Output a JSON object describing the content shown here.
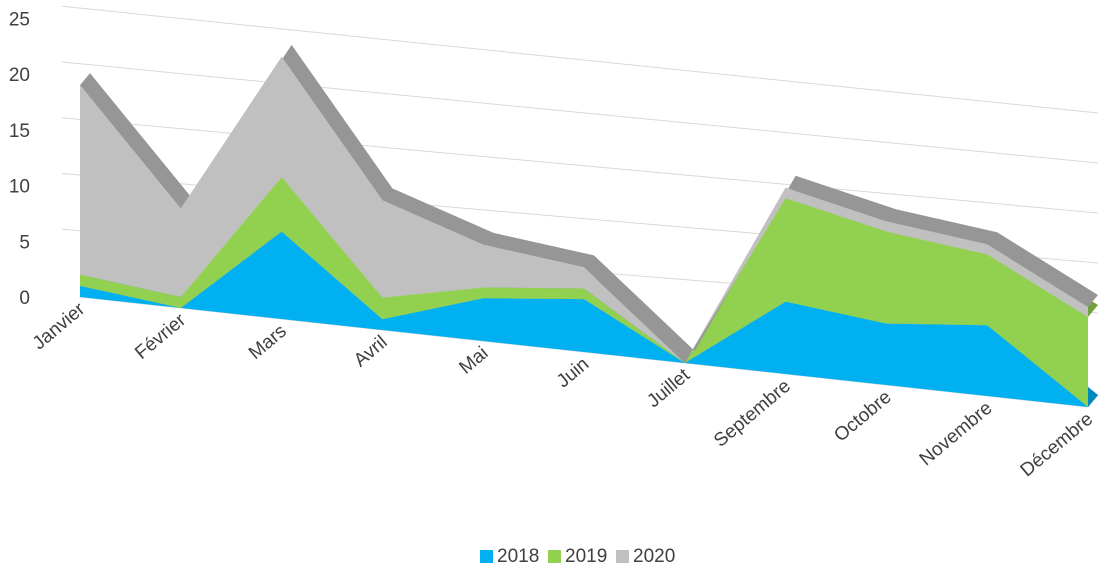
{
  "chart_data": {
    "type": "area",
    "subtype": "3d-stacked-area",
    "title": "",
    "xlabel": "",
    "ylabel": "",
    "ylim": [
      0,
      25
    ],
    "y_ticks": [
      "0",
      "5",
      "10",
      "15",
      "20",
      "25"
    ],
    "grid": true,
    "legend_position": "bottom",
    "categories": [
      "Janvier",
      "Février",
      "Mars",
      "Avril",
      "Mai",
      "Juin",
      "Juillet",
      "Septembre",
      "Octobre",
      "Novembre",
      "Décembre"
    ],
    "series": [
      {
        "name": "2018",
        "color": "#00b0f0",
        "values": [
          1,
          0,
          8,
          1,
          4,
          5,
          0,
          7,
          6,
          7,
          0
        ]
      },
      {
        "name": "2019",
        "color": "#92d050",
        "values": [
          1,
          1,
          5,
          2,
          1,
          1,
          0,
          10,
          9,
          7,
          9
        ]
      },
      {
        "name": "2020",
        "color": "#c0c0c0",
        "values": [
          17,
          8,
          11,
          9,
          4,
          2,
          0,
          1,
          1,
          1,
          1
        ]
      }
    ]
  }
}
